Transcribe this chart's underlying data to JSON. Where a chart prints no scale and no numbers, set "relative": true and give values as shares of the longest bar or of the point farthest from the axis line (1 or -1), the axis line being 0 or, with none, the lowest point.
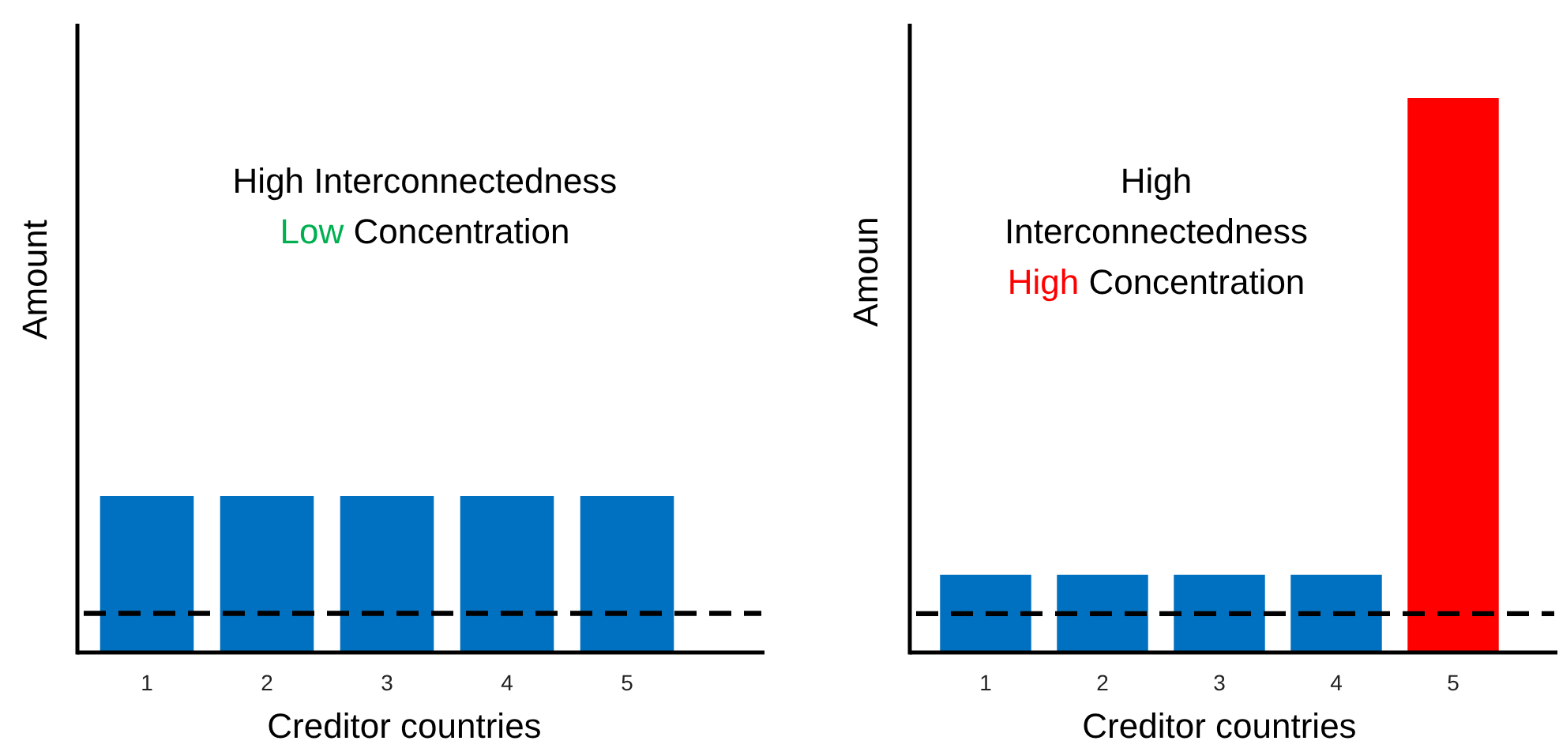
{
  "chart_data": [
    {
      "type": "bar",
      "relative": true,
      "categories": [
        "1",
        "2",
        "3",
        "4",
        "5"
      ],
      "values": [
        1,
        1,
        1,
        1,
        1
      ],
      "color": "#0070c0",
      "ylabel": "Amount",
      "xlabel": "Creditor countries",
      "annotations": [
        "High Interconnectedness",
        "Low Concentration"
      ],
      "ref_lines": [
        {
          "axis": "y",
          "value": 0.25,
          "color": "#000000",
          "line_style": "dashed"
        }
      ]
    },
    {
      "type": "bar",
      "relative": true,
      "categories": [
        "1",
        "2",
        "3",
        "4",
        "5"
      ],
      "values": [
        0.14,
        0.14,
        0.14,
        0.14,
        1
      ],
      "colors": [
        "#0070c0",
        "#0070c0",
        "#0070c0",
        "#0070c0",
        "#ff0000"
      ],
      "ylabel": "Amoun",
      "xlabel": "Creditor countries",
      "annotations": [
        "High Interconnectedness",
        "High Concentration"
      ],
      "ref_lines": [
        {
          "axis": "y",
          "value": 0.07,
          "color": "#000000",
          "line_style": "dashed"
        }
      ]
    }
  ]
}
